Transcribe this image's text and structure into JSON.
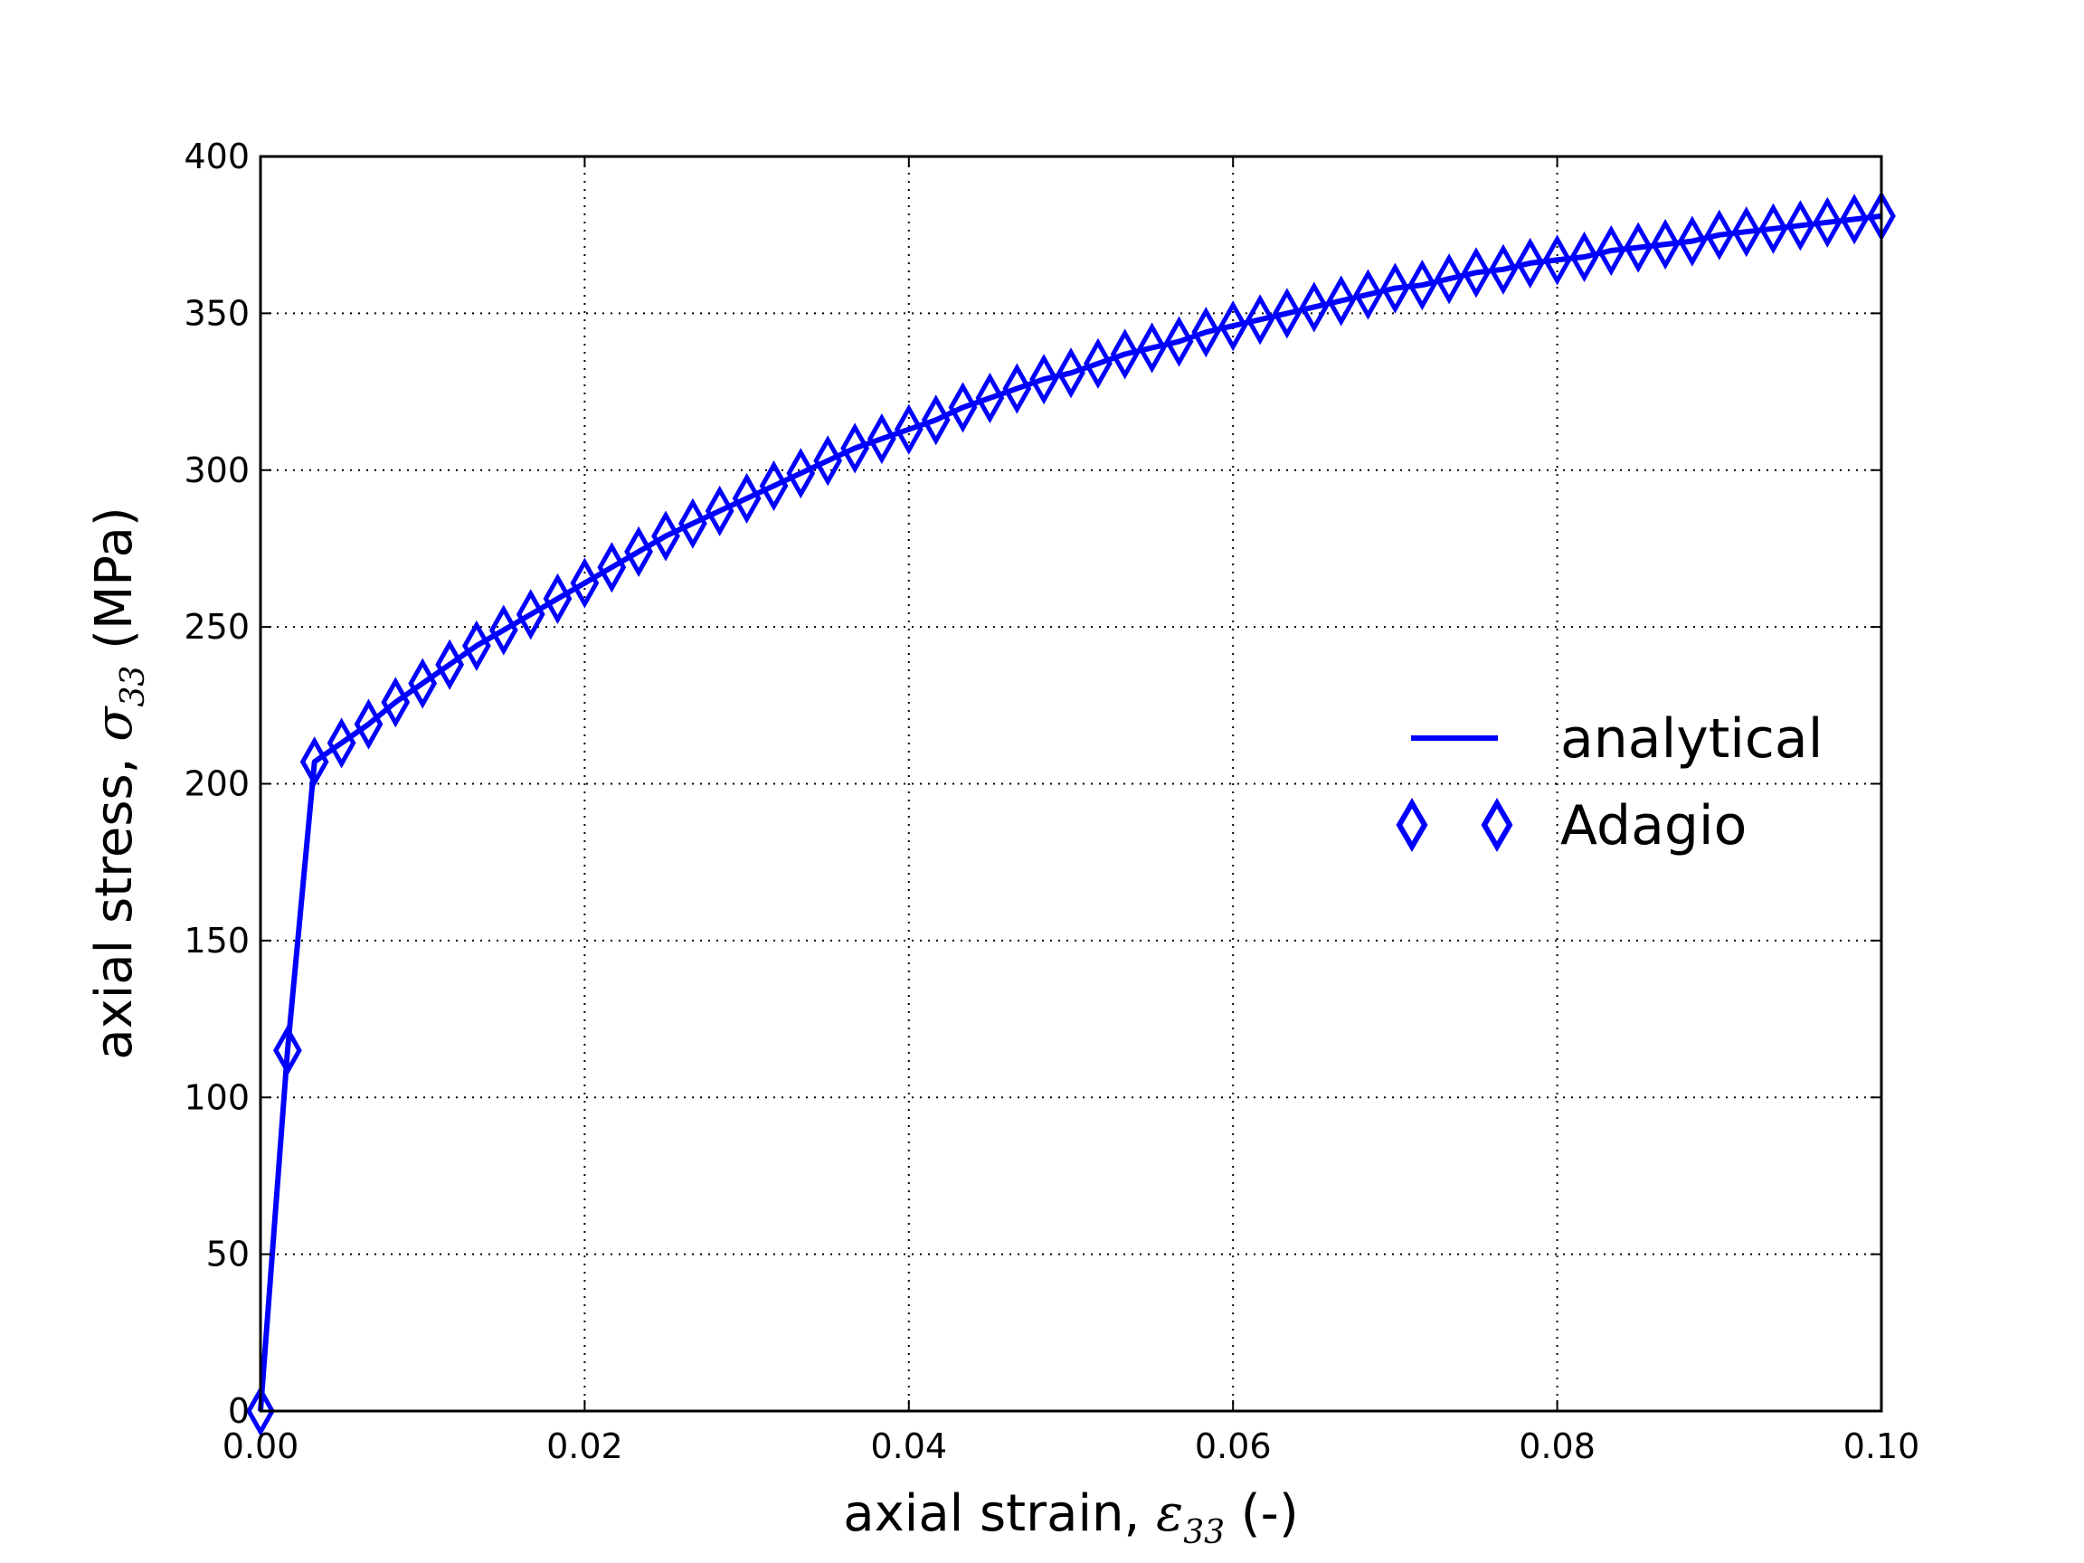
{
  "chart_data": {
    "type": "line",
    "title": "",
    "xlabel": {
      "prefix": "axial strain, ",
      "symbol": "ε",
      "subscript": "33",
      "suffix": " (-)"
    },
    "ylabel": {
      "prefix": "axial stress, ",
      "symbol": "σ",
      "subscript": "33",
      "suffix": " (MPa)"
    },
    "xlim": [
      0.0,
      0.1
    ],
    "ylim": [
      0,
      400
    ],
    "xticks": [
      0.0,
      0.02,
      0.04,
      0.06,
      0.08,
      0.1
    ],
    "xtick_labels": [
      "0.00",
      "0.02",
      "0.04",
      "0.06",
      "0.08",
      "0.10"
    ],
    "yticks": [
      0,
      50,
      100,
      150,
      200,
      250,
      300,
      350,
      400
    ],
    "ytick_labels": [
      "0",
      "50",
      "100",
      "150",
      "200",
      "250",
      "300",
      "350",
      "400"
    ],
    "grid": true,
    "legend": {
      "placement": "center-right",
      "entries": [
        {
          "label": "analytical",
          "style": "line"
        },
        {
          "label": "Adagio",
          "style": "diamond-markers"
        }
      ]
    },
    "colors": {
      "series": "#0000ff"
    },
    "series": [
      {
        "name": "analytical",
        "style": "line",
        "x": [
          0.0,
          0.00167,
          0.00333,
          0.005,
          0.00667,
          0.00833,
          0.01,
          0.01167,
          0.01333,
          0.015,
          0.01667,
          0.01833,
          0.02,
          0.02167,
          0.02333,
          0.025,
          0.02667,
          0.02833,
          0.03,
          0.03167,
          0.03333,
          0.035,
          0.03667,
          0.03833,
          0.04,
          0.04167,
          0.04333,
          0.045,
          0.04667,
          0.04833,
          0.05,
          0.05167,
          0.05333,
          0.055,
          0.05667,
          0.05833,
          0.06,
          0.06167,
          0.06333,
          0.065,
          0.06667,
          0.06833,
          0.07,
          0.07167,
          0.07333,
          0.075,
          0.07667,
          0.07833,
          0.08,
          0.08167,
          0.08333,
          0.085,
          0.08667,
          0.08833,
          0.09,
          0.09167,
          0.09333,
          0.095,
          0.09667,
          0.09833,
          0.1
        ],
        "y": [
          0,
          115,
          207,
          213,
          219,
          226,
          232,
          238,
          244,
          249,
          254,
          259,
          264,
          269,
          274,
          279,
          283,
          287,
          291,
          295,
          299,
          303,
          307,
          310,
          313,
          316,
          320,
          323,
          326,
          329,
          331,
          334,
          337,
          339,
          341,
          344,
          346,
          348,
          350,
          352,
          354,
          356,
          358,
          359,
          361,
          363,
          364,
          366,
          367,
          368,
          370,
          371,
          372,
          373,
          375,
          376,
          377,
          378,
          379,
          380,
          381
        ]
      },
      {
        "name": "Adagio",
        "style": "diamond-markers",
        "x": [
          0.0,
          0.00167,
          0.00333,
          0.005,
          0.00667,
          0.00833,
          0.01,
          0.01167,
          0.01333,
          0.015,
          0.01667,
          0.01833,
          0.02,
          0.02167,
          0.02333,
          0.025,
          0.02667,
          0.02833,
          0.03,
          0.03167,
          0.03333,
          0.035,
          0.03667,
          0.03833,
          0.04,
          0.04167,
          0.04333,
          0.045,
          0.04667,
          0.04833,
          0.05,
          0.05167,
          0.05333,
          0.055,
          0.05667,
          0.05833,
          0.06,
          0.06167,
          0.06333,
          0.065,
          0.06667,
          0.06833,
          0.07,
          0.07167,
          0.07333,
          0.075,
          0.07667,
          0.07833,
          0.08,
          0.08167,
          0.08333,
          0.085,
          0.08667,
          0.08833,
          0.09,
          0.09167,
          0.09333,
          0.095,
          0.09667,
          0.09833,
          0.1
        ],
        "y": [
          0,
          115,
          207,
          213,
          219,
          226,
          232,
          238,
          244,
          249,
          254,
          259,
          264,
          269,
          274,
          279,
          283,
          287,
          291,
          295,
          299,
          303,
          307,
          310,
          313,
          316,
          320,
          323,
          326,
          329,
          331,
          334,
          337,
          339,
          341,
          344,
          346,
          348,
          350,
          352,
          354,
          356,
          358,
          359,
          361,
          363,
          364,
          366,
          367,
          368,
          370,
          371,
          372,
          373,
          375,
          376,
          377,
          378,
          379,
          380,
          381
        ]
      }
    ]
  }
}
